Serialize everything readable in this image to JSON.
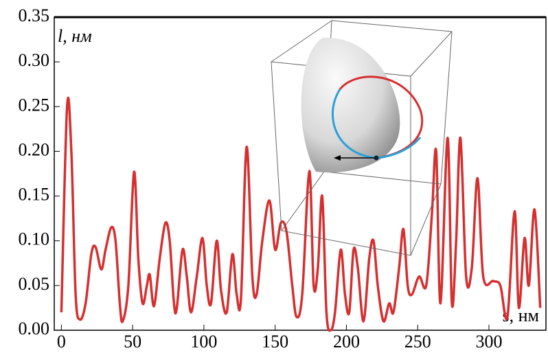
{
  "chart_data": {
    "type": "line",
    "y_label": "l, нм",
    "x_label": "s, нм",
    "xlim": [
      -5,
      340
    ],
    "ylim": [
      0,
      0.35
    ],
    "xticks": [
      0,
      50,
      100,
      150,
      200,
      250,
      300
    ],
    "yticks": [
      {
        "value": 0,
        "label": "0.00"
      },
      {
        "value": 0.05,
        "label": "0.05"
      },
      {
        "value": 0.1,
        "label": "0.10"
      },
      {
        "value": 0.15,
        "label": "0.15"
      },
      {
        "value": 0.2,
        "label": "0.20"
      },
      {
        "value": 0.25,
        "label": "0.25"
      },
      {
        "value": 0.3,
        "label": "0.30"
      },
      {
        "value": 0.35,
        "label": "0.35"
      }
    ],
    "series": [
      {
        "color": "#d62f2f",
        "x": [
          0,
          4,
          7,
          10,
          13,
          17,
          21,
          24,
          28,
          31,
          35,
          38,
          41,
          43,
          47,
          51,
          54,
          57,
          60,
          62,
          65,
          69,
          73,
          76,
          79,
          81,
          85,
          88,
          91,
          95,
          99,
          102,
          105,
          109,
          112,
          116,
          120,
          123,
          126,
          130,
          134,
          137,
          141,
          146,
          150,
          154,
          158,
          162,
          165,
          169,
          174,
          177,
          180,
          183,
          186,
          189,
          192,
          196,
          199,
          202,
          205,
          208,
          212,
          216,
          219,
          222,
          226,
          230,
          233,
          237,
          240,
          243,
          246,
          251,
          256,
          260,
          263,
          266,
          271,
          274,
          277,
          280,
          284,
          288,
          292,
          296,
          303,
          308,
          313,
          318,
          321,
          325,
          328,
          332,
          336
        ],
        "values": [
          0.02,
          0.25,
          0.2,
          0.04,
          0.012,
          0.03,
          0.085,
          0.093,
          0.068,
          0.09,
          0.115,
          0.1,
          0.03,
          0.01,
          0.05,
          0.177,
          0.08,
          0.03,
          0.05,
          0.062,
          0.027,
          0.08,
          0.12,
          0.1,
          0.03,
          0.025,
          0.09,
          0.06,
          0.02,
          0.06,
          0.103,
          0.05,
          0.03,
          0.1,
          0.045,
          0.02,
          0.085,
          0.04,
          0.035,
          0.205,
          0.06,
          0.04,
          0.1,
          0.145,
          0.09,
          0.12,
          0.11,
          0.05,
          0.015,
          0.04,
          0.178,
          0.05,
          0.07,
          0.15,
          0.02,
          0,
          0.02,
          0.09,
          0.04,
          0.02,
          0.09,
          0.07,
          0.01,
          0.08,
          0.1,
          0.05,
          0.01,
          0.03,
          0.02,
          0.07,
          0.113,
          0.05,
          0.04,
          0.06,
          0.05,
          0.13,
          0.2,
          0.03,
          0.215,
          0.03,
          0.1,
          0.215,
          0.06,
          0.07,
          0.17,
          0.06,
          0.055,
          0.05,
          0.015,
          0.133,
          0.025,
          0.103,
          0.05,
          0.135,
          0.025
        ]
      }
    ]
  }
}
